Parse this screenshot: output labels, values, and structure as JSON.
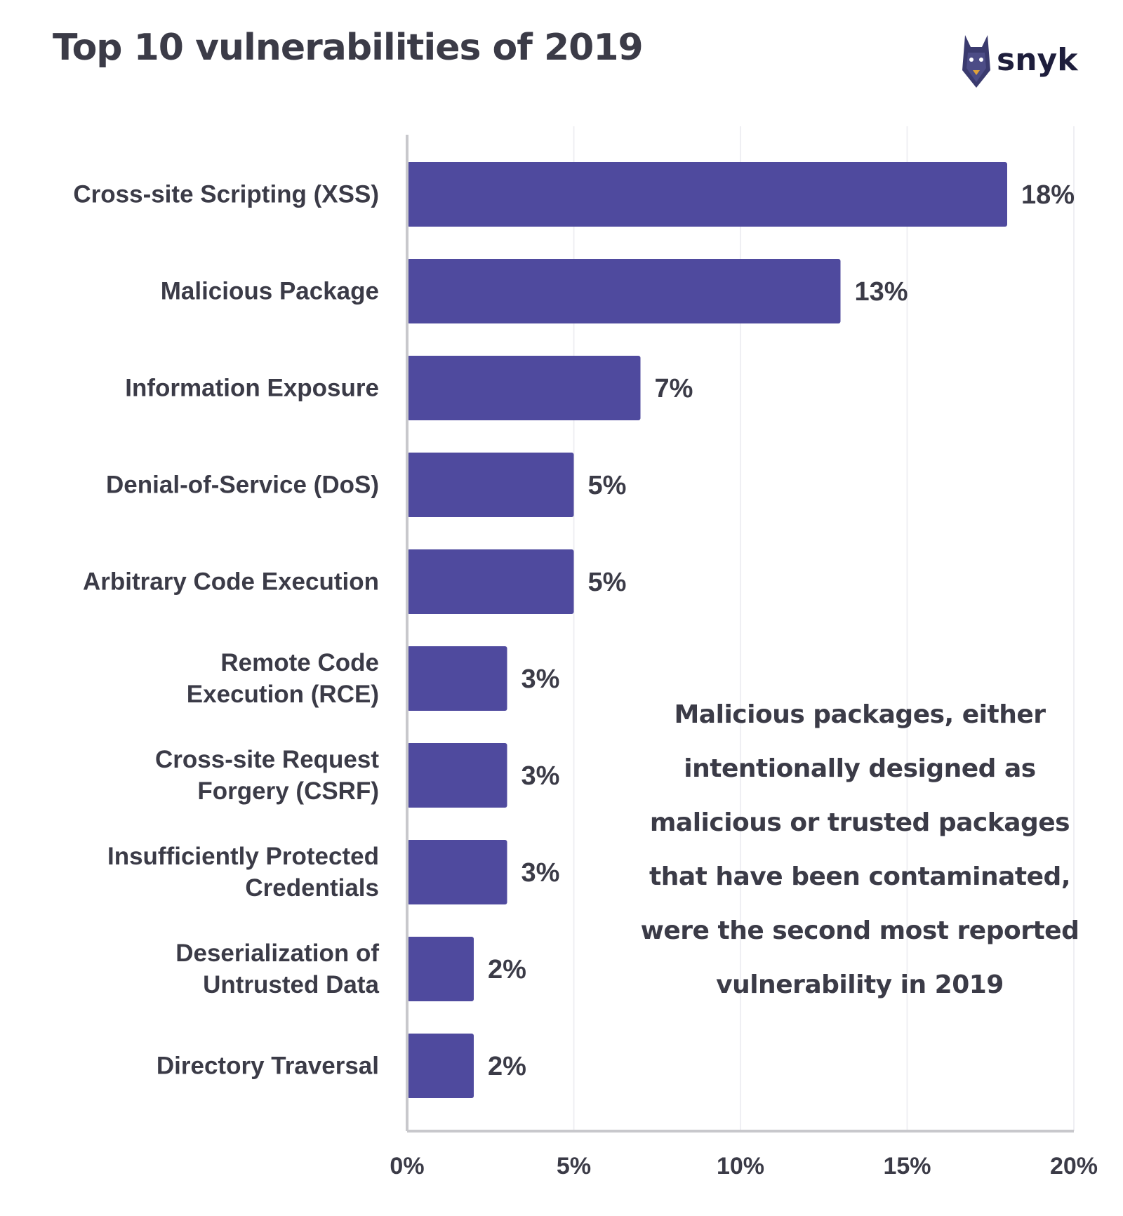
{
  "header": {
    "title": "Top 10 vulnerabilities of 2019",
    "brand": "snyk"
  },
  "colors": {
    "bar": "#4f4a9e",
    "text": "#3b3b47",
    "grid": "#efeff3",
    "axis": "#c8c8cc"
  },
  "annotation": {
    "lines": [
      "Malicious packages, either",
      "intentionally designed as",
      "malicious or trusted packages",
      "that have been contaminated,",
      "were the second most reported",
      "vulnerability in 2019"
    ]
  },
  "chart_data": {
    "type": "bar",
    "orientation": "horizontal",
    "title": "Top 10 vulnerabilities of 2019",
    "categories": [
      [
        "Cross-site Scripting (XSS)"
      ],
      [
        "Malicious Package"
      ],
      [
        "Information Exposure"
      ],
      [
        "Denial-of-Service (DoS)"
      ],
      [
        "Arbitrary Code Execution"
      ],
      [
        "Remote Code",
        "Execution (RCE)"
      ],
      [
        "Cross-site Request",
        "Forgery (CSRF)"
      ],
      [
        "Insufficiently Protected",
        "Credentials"
      ],
      [
        "Deserialization of",
        "Untrusted Data"
      ],
      [
        "Directory Traversal"
      ]
    ],
    "values": [
      18,
      13,
      7,
      5,
      5,
      3,
      3,
      3,
      2,
      2
    ],
    "value_labels": [
      "18%",
      "13%",
      "7%",
      "5%",
      "5%",
      "3%",
      "3%",
      "3%",
      "2%",
      "2%"
    ],
    "xlim": [
      0,
      20
    ],
    "xticks": [
      0,
      5,
      10,
      15,
      20
    ],
    "xtick_labels": [
      "0%",
      "5%",
      "10%",
      "15%",
      "20%"
    ],
    "grid": true,
    "legend": "none"
  }
}
